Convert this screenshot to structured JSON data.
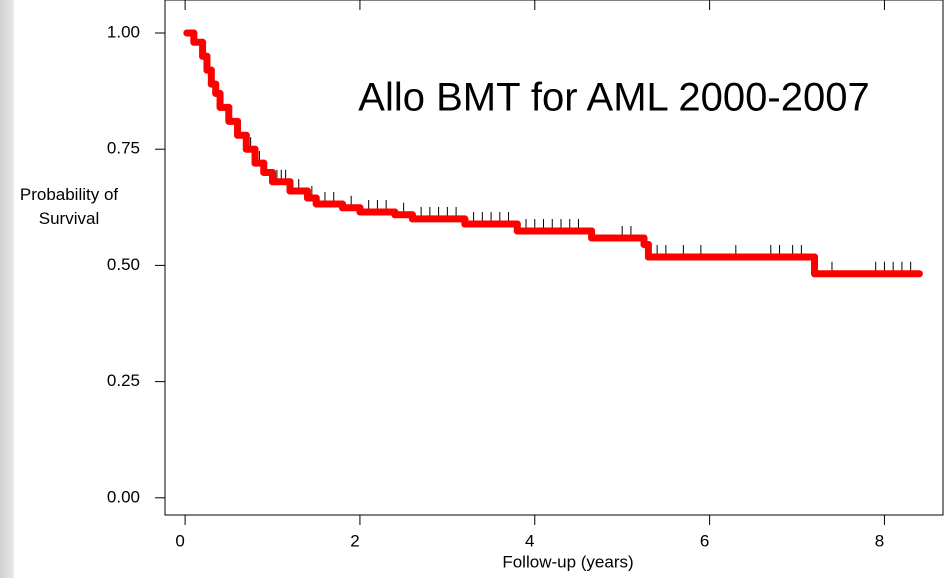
{
  "chart_data": {
    "type": "step",
    "title": "Allo BMT for AML 2000-2007",
    "xlabel": "Follow-up (years)",
    "ylabel": "Probability of Survival",
    "x": [
      0.02,
      0.1,
      0.2,
      0.25,
      0.3,
      0.35,
      0.4,
      0.5,
      0.6,
      0.7,
      0.8,
      0.9,
      1.0,
      1.2,
      1.4,
      1.5,
      1.8,
      2.0,
      2.4,
      2.6,
      3.2,
      3.8,
      4.65,
      5.25,
      5.3,
      7.2
    ],
    "series": [
      {
        "color": "#ff0000",
        "values": [
          1.0,
          0.98,
          0.95,
          0.92,
          0.89,
          0.87,
          0.84,
          0.81,
          0.78,
          0.75,
          0.72,
          0.7,
          0.68,
          0.66,
          0.645,
          0.632,
          0.624,
          0.615,
          0.609,
          0.6,
          0.589,
          0.574,
          0.559,
          0.545,
          0.518,
          0.482
        ]
      }
    ],
    "x_end": 8.4,
    "censored": [
      0.75,
      0.85,
      1.05,
      1.1,
      1.15,
      1.3,
      1.45,
      1.6,
      1.7,
      1.9,
      2.1,
      2.2,
      2.3,
      2.5,
      2.7,
      2.8,
      2.9,
      3.0,
      3.1,
      3.3,
      3.4,
      3.5,
      3.6,
      3.7,
      3.9,
      4.0,
      4.1,
      4.2,
      4.3,
      4.4,
      4.5,
      5.0,
      5.1,
      5.4,
      5.5,
      5.7,
      5.9,
      6.3,
      6.7,
      6.8,
      6.95,
      7.05,
      7.4,
      7.9,
      8.0,
      8.1,
      8.2,
      8.3
    ],
    "xlim": [
      -0.23,
      8.67
    ],
    "ylim": [
      -0.037,
      1.071
    ],
    "xticks": [
      0,
      2,
      4,
      6,
      8
    ],
    "yticks": [
      {
        "value": 0,
        "label": "0.00"
      },
      {
        "value": 0.25,
        "label": "0.25"
      },
      {
        "value": 0.5,
        "label": "0.50"
      },
      {
        "value": 0.75,
        "label": "0.75"
      },
      {
        "value": 1,
        "label": "1.00"
      }
    ],
    "grid": false
  }
}
